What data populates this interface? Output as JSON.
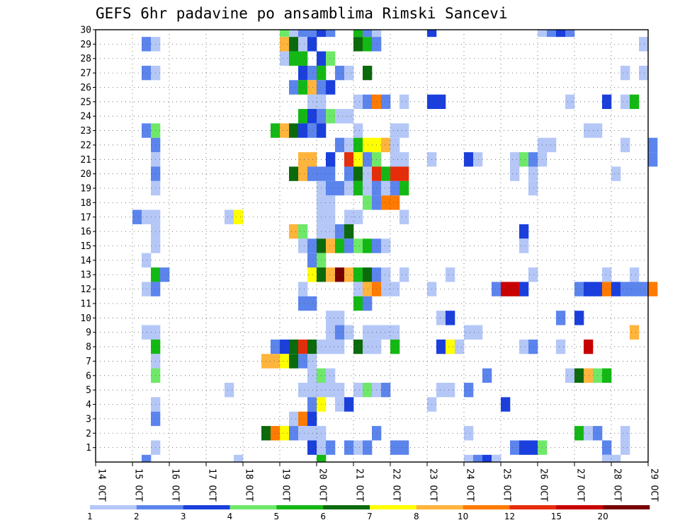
{
  "chart_data": {
    "type": "heatmap",
    "title": "GEFS 6hr padavine po ansamblima Rimski Sancevi",
    "y_tick_labels": [
      "1",
      "2",
      "3",
      "4",
      "5",
      "6",
      "7",
      "8",
      "9",
      "10",
      "11",
      "12",
      "13",
      "14",
      "15",
      "16",
      "17",
      "18",
      "19",
      "20",
      "21",
      "22",
      "23",
      "24",
      "25",
      "26",
      "27",
      "28",
      "29",
      "30"
    ],
    "x_tick_labels": [
      "14 OCT",
      "15 OCT",
      "16 OCT",
      "17 OCT",
      "18 OCT",
      "19 OCT",
      "20 OCT",
      "21 OCT",
      "22 OCT",
      "23 OCT",
      "24 OCT",
      "25 OCT",
      "26 OCT",
      "27 OCT",
      "28 OCT",
      "29 OCT"
    ],
    "x_start_day": 14,
    "x_end_day": 29,
    "steps_per_day": 4,
    "y_min": 0,
    "y_max": 30,
    "grid": true,
    "colorbar": {
      "placement": "bottom",
      "labels": [
        "1",
        "2",
        "3",
        "4",
        "5",
        "6",
        "7",
        "8",
        "10",
        "12",
        "15",
        "20"
      ],
      "colors": [
        "#b4c7f7",
        "#5b84ed",
        "#1a3fdc",
        "#6fe86a",
        "#14b814",
        "#0b6a0b",
        "#ffff00",
        "#ffb43c",
        "#ff7a00",
        "#e62d0a",
        "#c80000",
        "#780000"
      ]
    },
    "cells": [
      [
        30,
        19.0,
        4
      ],
      [
        30,
        19.25,
        1
      ],
      [
        30,
        19.5,
        2
      ],
      [
        30,
        19.75,
        2
      ],
      [
        30,
        20.0,
        3
      ],
      [
        30,
        20.25,
        2
      ],
      [
        30,
        21.0,
        5
      ],
      [
        30,
        21.25,
        2
      ],
      [
        30,
        21.5,
        1
      ],
      [
        30,
        23.0,
        3
      ],
      [
        30,
        26.0,
        1
      ],
      [
        30,
        26.25,
        2
      ],
      [
        30,
        26.5,
        3
      ],
      [
        30,
        26.75,
        2
      ],
      [
        29,
        15.25,
        2
      ],
      [
        29,
        15.5,
        1
      ],
      [
        29,
        19.0,
        8
      ],
      [
        29,
        19.25,
        6
      ],
      [
        29,
        19.5,
        1
      ],
      [
        29,
        19.75,
        3
      ],
      [
        29,
        21.0,
        6
      ],
      [
        29,
        21.25,
        5
      ],
      [
        29,
        21.5,
        2
      ],
      [
        29,
        28.75,
        1
      ],
      [
        28,
        19.0,
        1
      ],
      [
        28,
        19.25,
        5
      ],
      [
        28,
        19.5,
        5
      ],
      [
        28,
        20.0,
        3
      ],
      [
        28,
        20.25,
        4
      ],
      [
        27,
        15.25,
        2
      ],
      [
        27,
        15.5,
        1
      ],
      [
        27,
        19.5,
        3
      ],
      [
        27,
        19.75,
        2
      ],
      [
        27,
        20.0,
        5
      ],
      [
        27,
        20.5,
        2
      ],
      [
        27,
        20.75,
        1
      ],
      [
        27,
        21.25,
        6
      ],
      [
        27,
        28.25,
        1
      ],
      [
        27,
        28.75,
        1
      ],
      [
        26,
        19.25,
        2
      ],
      [
        26,
        19.5,
        5
      ],
      [
        26,
        19.75,
        8
      ],
      [
        26,
        20.0,
        2
      ],
      [
        26,
        20.25,
        3
      ],
      [
        25,
        19.75,
        1
      ],
      [
        25,
        20.0,
        1
      ],
      [
        25,
        21.0,
        1
      ],
      [
        25,
        21.25,
        2
      ],
      [
        25,
        21.5,
        9
      ],
      [
        25,
        21.75,
        2
      ],
      [
        25,
        22.25,
        1
      ],
      [
        25,
        23.0,
        3
      ],
      [
        25,
        23.25,
        3
      ],
      [
        25,
        26.75,
        1
      ],
      [
        25,
        27.75,
        3
      ],
      [
        25,
        28.25,
        1
      ],
      [
        25,
        28.5,
        5
      ],
      [
        24,
        19.5,
        5
      ],
      [
        24,
        19.75,
        3
      ],
      [
        24,
        20.0,
        2
      ],
      [
        24,
        20.25,
        4
      ],
      [
        24,
        20.5,
        1
      ],
      [
        24,
        20.75,
        1
      ],
      [
        23,
        15.25,
        2
      ],
      [
        23,
        15.5,
        4
      ],
      [
        23,
        18.75,
        5
      ],
      [
        23,
        19.0,
        8
      ],
      [
        23,
        19.25,
        6
      ],
      [
        23,
        19.5,
        3
      ],
      [
        23,
        19.75,
        2
      ],
      [
        23,
        20.0,
        3
      ],
      [
        23,
        21.0,
        1
      ],
      [
        23,
        22.0,
        1
      ],
      [
        23,
        22.25,
        1
      ],
      [
        23,
        27.25,
        1
      ],
      [
        23,
        27.5,
        1
      ],
      [
        22,
        15.5,
        2
      ],
      [
        22,
        20.5,
        2
      ],
      [
        22,
        20.75,
        1
      ],
      [
        22,
        21.0,
        5
      ],
      [
        22,
        21.25,
        7
      ],
      [
        22,
        21.5,
        7
      ],
      [
        22,
        21.75,
        8
      ],
      [
        22,
        22.0,
        1
      ],
      [
        22,
        26.0,
        1
      ],
      [
        22,
        26.25,
        1
      ],
      [
        22,
        28.25,
        1
      ],
      [
        22,
        29.0,
        2
      ],
      [
        21,
        15.5,
        1
      ],
      [
        21,
        19.5,
        8
      ],
      [
        21,
        19.75,
        8
      ],
      [
        21,
        20.25,
        3
      ],
      [
        21,
        20.75,
        10
      ],
      [
        21,
        21.0,
        7
      ],
      [
        21,
        21.25,
        2
      ],
      [
        21,
        21.5,
        4
      ],
      [
        21,
        22.0,
        1
      ],
      [
        21,
        22.25,
        1
      ],
      [
        21,
        23.0,
        1
      ],
      [
        21,
        24.0,
        3
      ],
      [
        21,
        24.25,
        1
      ],
      [
        21,
        25.25,
        1
      ],
      [
        21,
        25.5,
        4
      ],
      [
        21,
        25.75,
        2
      ],
      [
        21,
        26.0,
        1
      ],
      [
        21,
        29.0,
        2
      ],
      [
        20,
        15.5,
        2
      ],
      [
        20,
        19.25,
        6
      ],
      [
        20,
        19.5,
        8
      ],
      [
        20,
        19.75,
        2
      ],
      [
        20,
        20.0,
        2
      ],
      [
        20,
        20.25,
        2
      ],
      [
        20,
        20.75,
        2
      ],
      [
        20,
        21.0,
        6
      ],
      [
        20,
        21.25,
        1
      ],
      [
        20,
        21.5,
        10
      ],
      [
        20,
        21.75,
        5
      ],
      [
        20,
        22.0,
        10
      ],
      [
        20,
        22.25,
        10
      ],
      [
        20,
        25.25,
        1
      ],
      [
        20,
        25.75,
        1
      ],
      [
        20,
        28.0,
        1
      ],
      [
        19,
        15.5,
        1
      ],
      [
        19,
        20.0,
        1
      ],
      [
        19,
        20.25,
        2
      ],
      [
        19,
        20.5,
        2
      ],
      [
        19,
        20.75,
        1
      ],
      [
        19,
        21.0,
        5
      ],
      [
        19,
        21.25,
        1
      ],
      [
        19,
        21.5,
        2
      ],
      [
        19,
        21.75,
        1
      ],
      [
        19,
        22.0,
        2
      ],
      [
        19,
        22.25,
        5
      ],
      [
        19,
        25.75,
        1
      ],
      [
        18,
        20.0,
        1
      ],
      [
        18,
        20.25,
        1
      ],
      [
        18,
        21.25,
        4
      ],
      [
        18,
        21.5,
        2
      ],
      [
        18,
        21.75,
        9
      ],
      [
        18,
        22.0,
        9
      ],
      [
        17,
        15.0,
        2
      ],
      [
        17,
        15.25,
        1
      ],
      [
        17,
        15.5,
        1
      ],
      [
        17,
        17.5,
        1
      ],
      [
        17,
        17.75,
        7
      ],
      [
        17,
        20.0,
        1
      ],
      [
        17,
        20.25,
        1
      ],
      [
        17,
        20.75,
        1
      ],
      [
        17,
        21.0,
        1
      ],
      [
        17,
        22.25,
        1
      ],
      [
        16,
        15.5,
        1
      ],
      [
        16,
        19.25,
        8
      ],
      [
        16,
        19.5,
        4
      ],
      [
        16,
        20.0,
        1
      ],
      [
        16,
        20.25,
        1
      ],
      [
        16,
        20.5,
        2
      ],
      [
        16,
        20.75,
        6
      ],
      [
        16,
        25.5,
        3
      ],
      [
        15,
        15.5,
        1
      ],
      [
        15,
        19.5,
        1
      ],
      [
        15,
        19.75,
        2
      ],
      [
        15,
        20.0,
        6
      ],
      [
        15,
        20.25,
        8
      ],
      [
        15,
        20.5,
        5
      ],
      [
        15,
        20.75,
        2
      ],
      [
        15,
        21.0,
        4
      ],
      [
        15,
        21.25,
        5
      ],
      [
        15,
        21.5,
        2
      ],
      [
        15,
        21.75,
        1
      ],
      [
        15,
        25.5,
        1
      ],
      [
        14,
        15.25,
        1
      ],
      [
        14,
        19.75,
        2
      ],
      [
        14,
        20.0,
        4
      ],
      [
        13,
        15.5,
        5
      ],
      [
        13,
        15.75,
        2
      ],
      [
        13,
        19.75,
        7
      ],
      [
        13,
        20.0,
        6
      ],
      [
        13,
        20.25,
        8
      ],
      [
        13,
        20.5,
        12
      ],
      [
        13,
        20.75,
        8
      ],
      [
        13,
        21.0,
        5
      ],
      [
        13,
        21.25,
        6
      ],
      [
        13,
        21.5,
        2
      ],
      [
        13,
        21.75,
        1
      ],
      [
        13,
        22.25,
        1
      ],
      [
        13,
        23.5,
        1
      ],
      [
        13,
        25.75,
        1
      ],
      [
        13,
        27.75,
        1
      ],
      [
        13,
        28.5,
        1
      ],
      [
        12,
        15.25,
        1
      ],
      [
        12,
        15.5,
        2
      ],
      [
        12,
        19.5,
        1
      ],
      [
        12,
        21.0,
        1
      ],
      [
        12,
        21.25,
        8
      ],
      [
        12,
        21.5,
        9
      ],
      [
        12,
        21.75,
        1
      ],
      [
        12,
        22.0,
        1
      ],
      [
        12,
        23.0,
        1
      ],
      [
        12,
        24.75,
        2
      ],
      [
        12,
        25.0,
        11
      ],
      [
        12,
        25.25,
        11
      ],
      [
        12,
        25.5,
        3
      ],
      [
        12,
        27.0,
        2
      ],
      [
        12,
        27.25,
        3
      ],
      [
        12,
        27.5,
        3
      ],
      [
        12,
        27.75,
        9
      ],
      [
        12,
        28.0,
        3
      ],
      [
        12,
        28.25,
        2
      ],
      [
        12,
        28.5,
        2
      ],
      [
        12,
        28.75,
        2
      ],
      [
        12,
        29.0,
        9
      ],
      [
        11,
        19.5,
        2
      ],
      [
        11,
        19.75,
        2
      ],
      [
        11,
        21.0,
        5
      ],
      [
        11,
        21.25,
        2
      ],
      [
        10,
        20.25,
        1
      ],
      [
        10,
        20.5,
        1
      ],
      [
        10,
        23.25,
        1
      ],
      [
        10,
        23.5,
        3
      ],
      [
        10,
        26.5,
        2
      ],
      [
        10,
        27.0,
        3
      ],
      [
        9,
        15.25,
        1
      ],
      [
        9,
        15.5,
        1
      ],
      [
        9,
        20.25,
        1
      ],
      [
        9,
        20.5,
        2
      ],
      [
        9,
        20.75,
        1
      ],
      [
        9,
        21.25,
        1
      ],
      [
        9,
        21.5,
        1
      ],
      [
        9,
        21.75,
        1
      ],
      [
        9,
        22.0,
        1
      ],
      [
        9,
        24.0,
        1
      ],
      [
        9,
        24.25,
        1
      ],
      [
        9,
        28.5,
        8
      ],
      [
        8,
        15.5,
        5
      ],
      [
        8,
        18.75,
        2
      ],
      [
        8,
        19.0,
        3
      ],
      [
        8,
        19.25,
        6
      ],
      [
        8,
        19.5,
        10
      ],
      [
        8,
        19.75,
        6
      ],
      [
        8,
        20.0,
        1
      ],
      [
        8,
        20.25,
        1
      ],
      [
        8,
        20.5,
        1
      ],
      [
        8,
        21.0,
        6
      ],
      [
        8,
        21.25,
        1
      ],
      [
        8,
        21.5,
        1
      ],
      [
        8,
        22.0,
        5
      ],
      [
        8,
        23.25,
        3
      ],
      [
        8,
        23.5,
        7
      ],
      [
        8,
        23.75,
        1
      ],
      [
        8,
        25.5,
        1
      ],
      [
        8,
        25.75,
        2
      ],
      [
        8,
        26.5,
        1
      ],
      [
        8,
        27.25,
        11
      ],
      [
        7,
        15.5,
        1
      ],
      [
        7,
        18.5,
        8
      ],
      [
        7,
        18.75,
        8
      ],
      [
        7,
        19.0,
        7
      ],
      [
        7,
        19.25,
        6
      ],
      [
        7,
        19.5,
        2
      ],
      [
        7,
        19.75,
        1
      ],
      [
        6,
        15.5,
        4
      ],
      [
        6,
        19.75,
        1
      ],
      [
        6,
        20.0,
        4
      ],
      [
        6,
        20.25,
        1
      ],
      [
        6,
        24.5,
        2
      ],
      [
        6,
        26.75,
        1
      ],
      [
        6,
        27.0,
        6
      ],
      [
        6,
        27.25,
        8
      ],
      [
        6,
        27.5,
        4
      ],
      [
        6,
        27.75,
        5
      ],
      [
        5,
        17.5,
        1
      ],
      [
        5,
        19.5,
        1
      ],
      [
        5,
        19.75,
        1
      ],
      [
        5,
        20.0,
        1
      ],
      [
        5,
        20.25,
        1
      ],
      [
        5,
        20.5,
        1
      ],
      [
        5,
        21.0,
        1
      ],
      [
        5,
        21.25,
        4
      ],
      [
        5,
        21.5,
        1
      ],
      [
        5,
        21.75,
        2
      ],
      [
        5,
        23.25,
        1
      ],
      [
        5,
        23.5,
        1
      ],
      [
        5,
        24.0,
        2
      ],
      [
        4,
        15.5,
        1
      ],
      [
        4,
        19.75,
        2
      ],
      [
        4,
        20.0,
        7
      ],
      [
        4,
        20.5,
        1
      ],
      [
        4,
        20.75,
        3
      ],
      [
        4,
        23.0,
        1
      ],
      [
        4,
        25.0,
        3
      ],
      [
        3,
        15.5,
        2
      ],
      [
        3,
        19.25,
        1
      ],
      [
        3,
        19.5,
        9
      ],
      [
        3,
        19.75,
        3
      ],
      [
        2,
        18.5,
        6
      ],
      [
        2,
        18.75,
        9
      ],
      [
        2,
        19.0,
        7
      ],
      [
        2,
        19.25,
        2
      ],
      [
        2,
        19.5,
        1
      ],
      [
        2,
        19.75,
        1
      ],
      [
        2,
        20.0,
        1
      ],
      [
        2,
        21.5,
        2
      ],
      [
        2,
        24.0,
        1
      ],
      [
        2,
        27.0,
        5
      ],
      [
        2,
        27.25,
        1
      ],
      [
        2,
        27.5,
        2
      ],
      [
        2,
        28.25,
        1
      ],
      [
        1,
        15.5,
        1
      ],
      [
        1,
        19.75,
        3
      ],
      [
        1,
        20.0,
        1
      ],
      [
        1,
        20.25,
        2
      ],
      [
        1,
        20.75,
        2
      ],
      [
        1,
        21.0,
        1
      ],
      [
        1,
        21.25,
        2
      ],
      [
        1,
        22.0,
        2
      ],
      [
        1,
        22.25,
        2
      ],
      [
        1,
        25.25,
        2
      ],
      [
        1,
        25.5,
        3
      ],
      [
        1,
        25.75,
        3
      ],
      [
        1,
        26.0,
        4
      ],
      [
        1,
        27.75,
        2
      ],
      [
        1,
        28.25,
        1
      ],
      [
        0,
        15.25,
        2
      ],
      [
        0,
        17.75,
        1
      ],
      [
        0,
        20.0,
        5
      ],
      [
        0,
        24.0,
        1
      ],
      [
        0,
        24.25,
        2
      ],
      [
        0,
        24.5,
        3
      ],
      [
        0,
        24.75,
        1
      ],
      [
        0,
        27.75,
        1
      ],
      [
        0,
        28.0,
        1
      ]
    ]
  }
}
